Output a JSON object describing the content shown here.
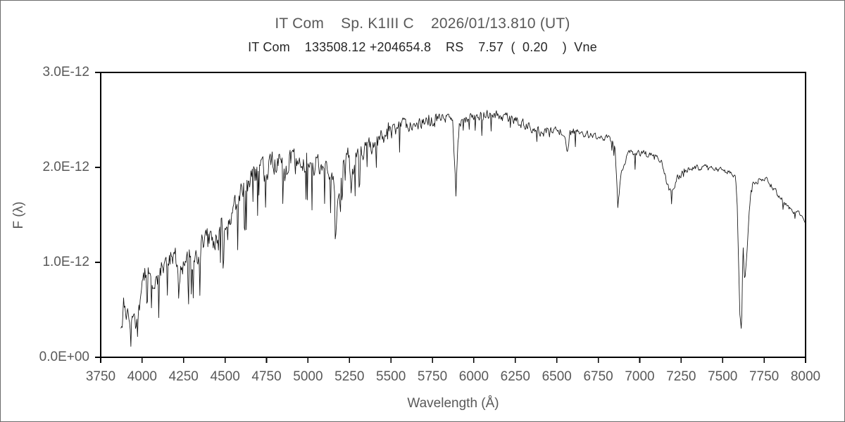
{
  "figure": {
    "title": "IT Com    Sp. K1III C    2026/01/13.810 (UT)",
    "subtitle": "IT Com    133508.12 +204654.8    RS    7.57  (  0.20    )  Vne",
    "colors": {
      "title_text": "#595959",
      "subtitle_text": "#262626",
      "tick_label_text": "#595959",
      "axis_line": "#000000",
      "spectrum_line": "#111111",
      "background": "#ffffff",
      "figure_border": "#6b6b6b"
    }
  },
  "chart_data": {
    "type": "line",
    "title": "IT Com    Sp. K1III C    2026/01/13.810 (UT)",
    "subtitle": "IT Com    133508.12 +204654.8    RS    7.57  (  0.20    )  Vne",
    "xlabel": "Wavelength (Å)",
    "ylabel": "F (λ)",
    "xlim": [
      3750,
      8000
    ],
    "ylim": [
      0,
      3e-12
    ],
    "grid": false,
    "legend": "none",
    "x_ticks": [
      3750,
      4000,
      4250,
      4500,
      4750,
      5000,
      5250,
      5500,
      5750,
      6000,
      6250,
      6500,
      6750,
      7000,
      7250,
      7500,
      7750,
      8000
    ],
    "x_tick_labels": [
      "3750",
      "4000",
      "4250",
      "4500",
      "4750",
      "5000",
      "5250",
      "5500",
      "5750",
      "6000",
      "6250",
      "6500",
      "6750",
      "7000",
      "7250",
      "7500",
      "7750",
      "8000"
    ],
    "y_ticks": [
      0,
      1e-12,
      2e-12,
      3e-12
    ],
    "y_tick_labels": [
      "0.0E+00",
      "1.0E-12",
      "2.0E-12",
      "3.0E-12"
    ],
    "series": [
      {
        "name": "spectrum",
        "flux_unit_scale": 1e-12,
        "wavelength_start": 3872,
        "wavelength_end": 8000,
        "sample_step_angstrom": 4,
        "noise_seed": 1352026,
        "envelope_points": [
          [
            3872,
            0.34
          ],
          [
            3880,
            0.44
          ],
          [
            3888,
            0.58
          ],
          [
            3896,
            0.55
          ],
          [
            3904,
            0.46
          ],
          [
            3912,
            0.55
          ],
          [
            3922,
            0.36
          ],
          [
            3932,
            0.3
          ],
          [
            3942,
            0.4
          ],
          [
            3950,
            0.48
          ],
          [
            3960,
            0.33
          ],
          [
            3970,
            0.42
          ],
          [
            3980,
            0.52
          ],
          [
            3990,
            0.62
          ],
          [
            4000,
            0.75
          ],
          [
            4010,
            0.85
          ],
          [
            4025,
            0.92
          ],
          [
            4040,
            0.9
          ],
          [
            4055,
            0.88
          ],
          [
            4070,
            0.84
          ],
          [
            4085,
            0.88
          ],
          [
            4101,
            0.78
          ],
          [
            4115,
            0.92
          ],
          [
            4130,
            0.98
          ],
          [
            4145,
            1.02
          ],
          [
            4160,
            1.05
          ],
          [
            4175,
            1.03
          ],
          [
            4190,
            1.0
          ],
          [
            4205,
            1.0
          ],
          [
            4220,
            0.85
          ],
          [
            4227,
            0.7
          ],
          [
            4235,
            0.9
          ],
          [
            4250,
            1.05
          ],
          [
            4265,
            1.07
          ],
          [
            4280,
            1.08
          ],
          [
            4295,
            0.97
          ],
          [
            4308,
            0.93
          ],
          [
            4320,
            1.1
          ],
          [
            4335,
            1.05
          ],
          [
            4350,
            1.12
          ],
          [
            4365,
            1.16
          ],
          [
            4385,
            1.2
          ],
          [
            4405,
            1.22
          ],
          [
            4425,
            1.25
          ],
          [
            4445,
            1.28
          ],
          [
            4465,
            1.31
          ],
          [
            4485,
            1.35
          ],
          [
            4505,
            1.4
          ],
          [
            4525,
            1.47
          ],
          [
            4550,
            1.56
          ],
          [
            4575,
            1.64
          ],
          [
            4600,
            1.73
          ],
          [
            4625,
            1.79
          ],
          [
            4650,
            1.85
          ],
          [
            4675,
            1.9
          ],
          [
            4700,
            1.95
          ],
          [
            4725,
            1.98
          ],
          [
            4750,
            2.01
          ],
          [
            4775,
            2.04
          ],
          [
            4800,
            2.07
          ],
          [
            4825,
            2.06
          ],
          [
            4845,
            2.03
          ],
          [
            4861,
            1.95
          ],
          [
            4880,
            2.06
          ],
          [
            4900,
            2.08
          ],
          [
            4925,
            2.1
          ],
          [
            4950,
            2.1
          ],
          [
            4975,
            2.1
          ],
          [
            5000,
            2.09
          ],
          [
            5025,
            2.07
          ],
          [
            5050,
            2.05
          ],
          [
            5075,
            2.02
          ],
          [
            5100,
            1.99
          ],
          [
            5125,
            1.96
          ],
          [
            5150,
            1.88
          ],
          [
            5162,
            1.7
          ],
          [
            5171,
            1.48
          ],
          [
            5182,
            1.68
          ],
          [
            5195,
            1.88
          ],
          [
            5210,
            2.0
          ],
          [
            5228,
            2.06
          ],
          [
            5245,
            2.1
          ],
          [
            5262,
            1.8
          ],
          [
            5278,
            2.08
          ],
          [
            5295,
            2.13
          ],
          [
            5315,
            2.16
          ],
          [
            5340,
            2.19
          ],
          [
            5365,
            2.22
          ],
          [
            5395,
            2.26
          ],
          [
            5425,
            2.29
          ],
          [
            5455,
            2.32
          ],
          [
            5485,
            2.36
          ],
          [
            5515,
            2.39
          ],
          [
            5545,
            2.41
          ],
          [
            5575,
            2.43
          ],
          [
            5605,
            2.45
          ],
          [
            5635,
            2.46
          ],
          [
            5665,
            2.47
          ],
          [
            5695,
            2.48
          ],
          [
            5725,
            2.49
          ],
          [
            5755,
            2.5
          ],
          [
            5785,
            2.51
          ],
          [
            5815,
            2.52
          ],
          [
            5845,
            2.52
          ],
          [
            5872,
            2.5
          ],
          [
            5883,
            2.1
          ],
          [
            5892,
            1.74
          ],
          [
            5901,
            2.1
          ],
          [
            5912,
            2.48
          ],
          [
            5935,
            2.51
          ],
          [
            5960,
            2.53
          ],
          [
            5985,
            2.54
          ],
          [
            6010,
            2.55
          ],
          [
            6040,
            2.55
          ],
          [
            6070,
            2.56
          ],
          [
            6100,
            2.55
          ],
          [
            6130,
            2.54
          ],
          [
            6160,
            2.54
          ],
          [
            6190,
            2.53
          ],
          [
            6220,
            2.51
          ],
          [
            6250,
            2.49
          ],
          [
            6280,
            2.47
          ],
          [
            6310,
            2.45
          ],
          [
            6340,
            2.43
          ],
          [
            6370,
            2.41
          ],
          [
            6400,
            2.38
          ],
          [
            6420,
            2.33
          ],
          [
            6440,
            2.4
          ],
          [
            6470,
            2.39
          ],
          [
            6500,
            2.39
          ],
          [
            6530,
            2.38
          ],
          [
            6550,
            2.34
          ],
          [
            6563,
            2.16
          ],
          [
            6578,
            2.34
          ],
          [
            6600,
            2.38
          ],
          [
            6630,
            2.37
          ],
          [
            6660,
            2.36
          ],
          [
            6690,
            2.34
          ],
          [
            6720,
            2.33
          ],
          [
            6750,
            2.33
          ],
          [
            6780,
            2.31
          ],
          [
            6810,
            2.3
          ],
          [
            6835,
            2.28
          ],
          [
            6852,
            2.22
          ],
          [
            6860,
            1.9
          ],
          [
            6868,
            1.58
          ],
          [
            6876,
            1.74
          ],
          [
            6884,
            1.86
          ],
          [
            6895,
            1.98
          ],
          [
            6910,
            2.06
          ],
          [
            6925,
            2.12
          ],
          [
            6945,
            2.15
          ],
          [
            6965,
            2.15
          ],
          [
            6985,
            2.14
          ],
          [
            7010,
            2.13
          ],
          [
            7035,
            2.13
          ],
          [
            7060,
            2.12
          ],
          [
            7085,
            2.11
          ],
          [
            7110,
            2.09
          ],
          [
            7135,
            2.04
          ],
          [
            7155,
            1.9
          ],
          [
            7170,
            1.78
          ],
          [
            7190,
            1.72
          ],
          [
            7205,
            1.8
          ],
          [
            7220,
            1.87
          ],
          [
            7240,
            1.92
          ],
          [
            7265,
            1.95
          ],
          [
            7290,
            1.97
          ],
          [
            7315,
            1.99
          ],
          [
            7340,
            2.0
          ],
          [
            7365,
            2.0
          ],
          [
            7390,
            1.99
          ],
          [
            7415,
            1.98
          ],
          [
            7440,
            1.98
          ],
          [
            7465,
            1.97
          ],
          [
            7490,
            1.97
          ],
          [
            7515,
            1.96
          ],
          [
            7540,
            1.95
          ],
          [
            7560,
            1.93
          ],
          [
            7578,
            1.9
          ],
          [
            7588,
            1.6
          ],
          [
            7596,
            1.0
          ],
          [
            7604,
            0.45
          ],
          [
            7612,
            0.3
          ],
          [
            7618,
            0.6
          ],
          [
            7622,
            1.25
          ],
          [
            7627,
            1.0
          ],
          [
            7633,
            0.8
          ],
          [
            7640,
            0.95
          ],
          [
            7650,
            1.2
          ],
          [
            7660,
            1.5
          ],
          [
            7670,
            1.75
          ],
          [
            7682,
            1.82
          ],
          [
            7695,
            1.85
          ],
          [
            7715,
            1.87
          ],
          [
            7735,
            1.88
          ],
          [
            7755,
            1.87
          ],
          [
            7775,
            1.84
          ],
          [
            7795,
            1.8
          ],
          [
            7815,
            1.76
          ],
          [
            7835,
            1.71
          ],
          [
            7855,
            1.66
          ],
          [
            7875,
            1.62
          ],
          [
            7895,
            1.59
          ],
          [
            7915,
            1.56
          ],
          [
            7935,
            1.54
          ],
          [
            7955,
            1.52
          ],
          [
            7975,
            1.49
          ],
          [
            7990,
            1.46
          ],
          [
            8000,
            1.44
          ]
        ],
        "noise_amplitude_points": [
          [
            3872,
            0.07
          ],
          [
            3950,
            0.08
          ],
          [
            4000,
            0.1
          ],
          [
            4100,
            0.12
          ],
          [
            4250,
            0.13
          ],
          [
            4400,
            0.13
          ],
          [
            4600,
            0.12
          ],
          [
            4800,
            0.12
          ],
          [
            5000,
            0.13
          ],
          [
            5150,
            0.12
          ],
          [
            5300,
            0.1
          ],
          [
            5450,
            0.085
          ],
          [
            5600,
            0.07
          ],
          [
            5750,
            0.06
          ],
          [
            5900,
            0.055
          ],
          [
            6100,
            0.05
          ],
          [
            6300,
            0.048
          ],
          [
            6500,
            0.042
          ],
          [
            6700,
            0.038
          ],
          [
            6850,
            0.03
          ],
          [
            6950,
            0.04
          ],
          [
            7100,
            0.038
          ],
          [
            7250,
            0.035
          ],
          [
            7400,
            0.032
          ],
          [
            7550,
            0.028
          ],
          [
            7612,
            0.015
          ],
          [
            7700,
            0.035
          ],
          [
            7800,
            0.032
          ],
          [
            7900,
            0.028
          ],
          [
            8000,
            0.025
          ]
        ],
        "absorption_spike_probability_points": [
          [
            3872,
            0.1
          ],
          [
            4200,
            0.13
          ],
          [
            4800,
            0.13
          ],
          [
            5300,
            0.11
          ],
          [
            5500,
            0.07
          ],
          [
            5900,
            0.05
          ],
          [
            6300,
            0.05
          ],
          [
            6800,
            0.04
          ],
          [
            7200,
            0.035
          ],
          [
            7550,
            0.02
          ],
          [
            7650,
            0.02
          ],
          [
            7800,
            0.03
          ],
          [
            8000,
            0.03
          ]
        ]
      }
    ]
  }
}
